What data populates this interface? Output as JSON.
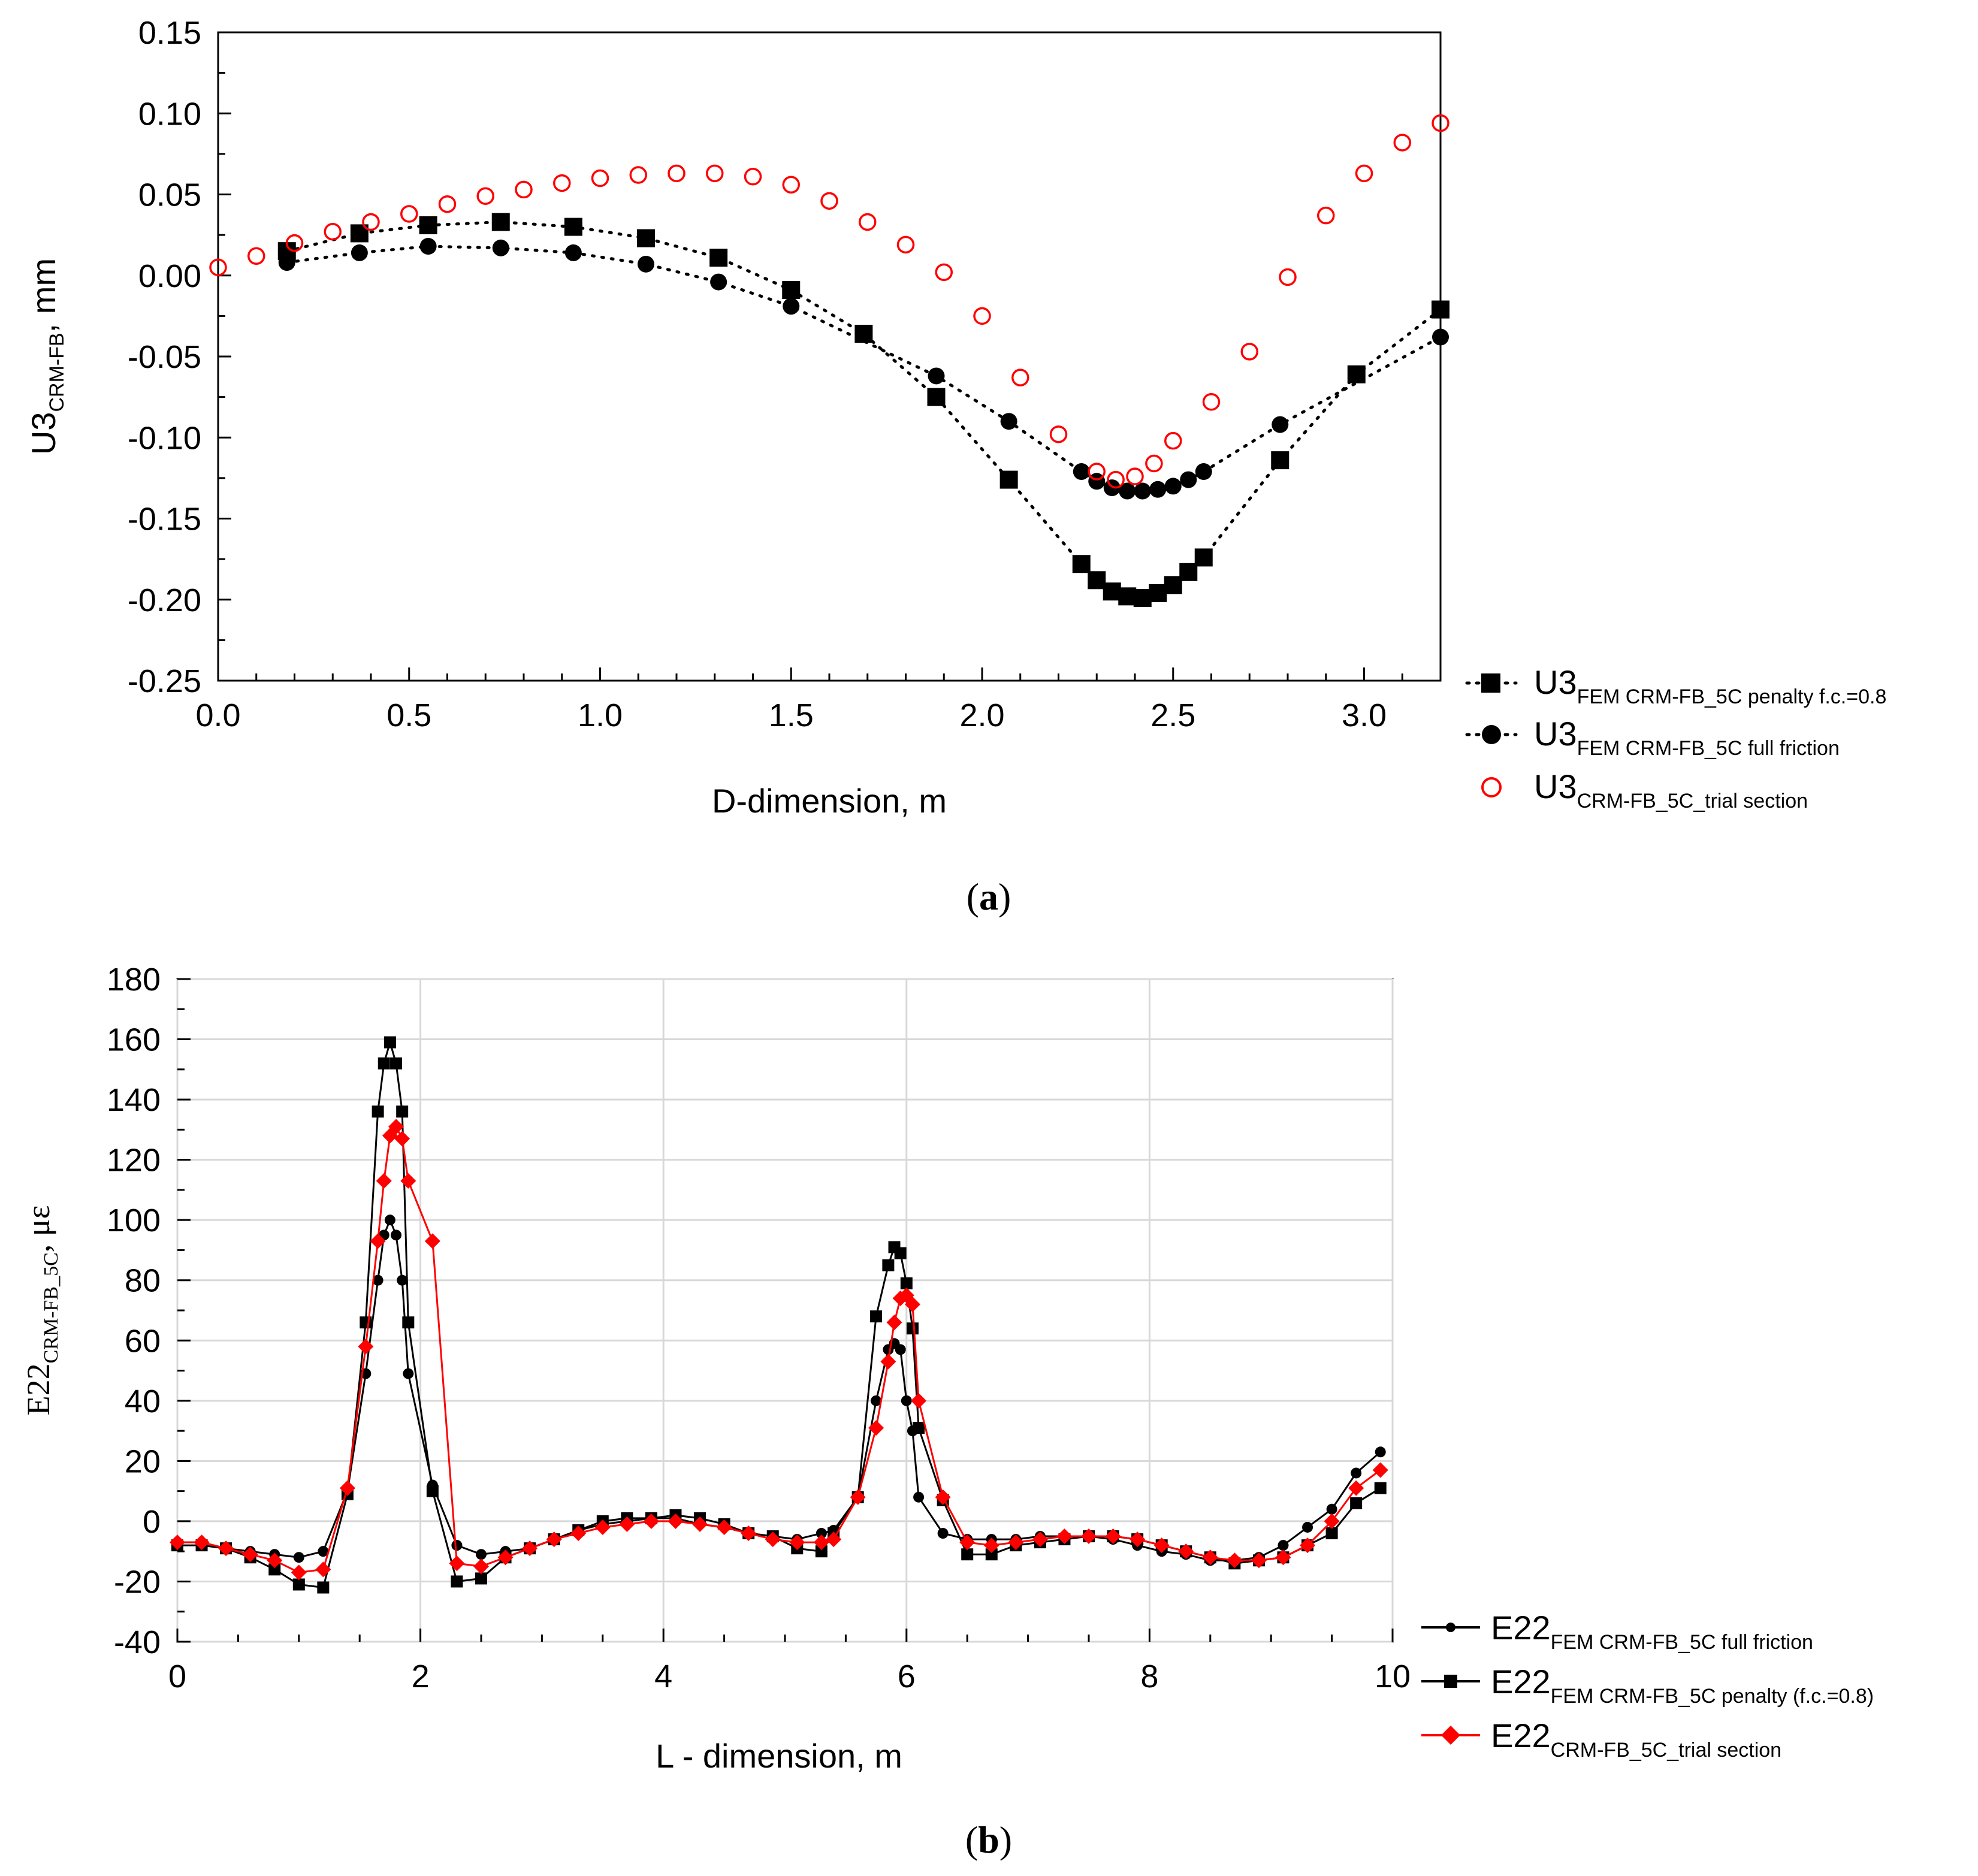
{
  "colors": {
    "black": "#000000",
    "red": "#ff0000",
    "grid": "#d8d8d8"
  },
  "chart_data": [
    {
      "id": "a",
      "type": "scatter",
      "panel_label": "(a)",
      "panel_letter": "a",
      "xlabel": "D-dimension, m",
      "ylabel_main": "U3",
      "ylabel_sub": "CRM-FB",
      "ylabel_suffix": ", mm",
      "xlim": [
        0.0,
        3.2
      ],
      "ylim": [
        -0.25,
        0.15
      ],
      "xticks": [
        0.0,
        0.5,
        1.0,
        1.5,
        2.0,
        2.5,
        3.0
      ],
      "xtick_labels": [
        "0.0",
        "0.5",
        "1.0",
        "1.5",
        "2.0",
        "2.5",
        "3.0"
      ],
      "yticks": [
        -0.25,
        -0.2,
        -0.15,
        -0.1,
        -0.05,
        0.0,
        0.05,
        0.1,
        0.15
      ],
      "ytick_labels": [
        "-0.25",
        "-0.20",
        "-0.15",
        "-0.10",
        "-0.05",
        "0.00",
        "0.05",
        "0.10",
        "0.15"
      ],
      "grid": false,
      "legend_position": "bottom-right outside",
      "series": [
        {
          "name": "U3 FEM CRM-FB_5C penalty f.c.=0.8",
          "label_main": "U3",
          "label_sub": "FEM CRM-FB_5C penalty f.c.=0.8",
          "marker": "square",
          "color": "#000000",
          "line": "dotted",
          "x": [
            0.18,
            0.37,
            0.55,
            0.74,
            0.93,
            1.12,
            1.31,
            1.5,
            1.69,
            1.88,
            2.07,
            2.26,
            2.3,
            2.34,
            2.38,
            2.42,
            2.46,
            2.5,
            2.54,
            2.58,
            2.78,
            2.98,
            3.2
          ],
          "y": [
            0.015,
            0.026,
            0.031,
            0.033,
            0.03,
            0.023,
            0.011,
            -0.009,
            -0.036,
            -0.075,
            -0.126,
            -0.178,
            -0.188,
            -0.195,
            -0.198,
            -0.199,
            -0.196,
            -0.191,
            -0.183,
            -0.174,
            -0.114,
            -0.061,
            -0.021
          ]
        },
        {
          "name": "U3 FEM CRM-FB_5C full friction",
          "label_main": "U3",
          "label_sub": "FEM CRM-FB_5C full friction",
          "marker": "circle",
          "color": "#000000",
          "line": "dotted",
          "x": [
            0.18,
            0.37,
            0.55,
            0.74,
            0.93,
            1.12,
            1.31,
            1.5,
            1.88,
            2.07,
            2.26,
            2.3,
            2.34,
            2.38,
            2.42,
            2.46,
            2.5,
            2.54,
            2.58,
            2.78,
            3.2
          ],
          "y": [
            0.008,
            0.014,
            0.018,
            0.017,
            0.014,
            0.007,
            -0.004,
            -0.019,
            -0.062,
            -0.09,
            -0.121,
            -0.127,
            -0.131,
            -0.133,
            -0.133,
            -0.132,
            -0.13,
            -0.126,
            -0.121,
            -0.092,
            -0.038
          ]
        },
        {
          "name": "U3 CRM-FB_5C_trial section",
          "label_main": "U3",
          "label_sub": "CRM-FB_5C_trial section",
          "marker": "open-circle",
          "color": "#ff0000",
          "line": "none",
          "x": [
            0.0,
            0.1,
            0.2,
            0.3,
            0.4,
            0.5,
            0.6,
            0.7,
            0.8,
            0.9,
            1.0,
            1.1,
            1.2,
            1.3,
            1.4,
            1.5,
            1.6,
            1.7,
            1.8,
            1.9,
            2.0,
            2.1,
            2.2,
            2.3,
            2.35,
            2.4,
            2.45,
            2.5,
            2.6,
            2.7,
            2.8,
            2.9,
            3.0,
            3.1,
            3.2
          ],
          "y": [
            0.005,
            0.012,
            0.02,
            0.027,
            0.033,
            0.038,
            0.044,
            0.049,
            0.053,
            0.057,
            0.06,
            0.062,
            0.063,
            0.063,
            0.061,
            0.056,
            0.046,
            0.033,
            0.019,
            0.002,
            -0.025,
            -0.063,
            -0.098,
            -0.121,
            -0.126,
            -0.124,
            -0.116,
            -0.102,
            -0.078,
            -0.047,
            -0.001,
            0.037,
            0.063,
            0.082,
            0.094
          ]
        }
      ]
    },
    {
      "id": "b",
      "type": "line",
      "panel_label": "(b)",
      "panel_letter": "b",
      "xlabel": "L - dimension, m",
      "ylabel_main": "E22",
      "ylabel_sub": "CRM-FB_5C",
      "ylabel_suffix": ", με",
      "xlim": [
        0,
        10
      ],
      "ylim": [
        -40,
        180
      ],
      "xticks": [
        0,
        2,
        4,
        6,
        8,
        10
      ],
      "xtick_labels": [
        "0",
        "2",
        "4",
        "6",
        "8",
        "10"
      ],
      "yticks": [
        -40,
        -20,
        0,
        20,
        40,
        60,
        80,
        100,
        120,
        140,
        160,
        180
      ],
      "ytick_labels": [
        "-40",
        "-20",
        "0",
        "20",
        "40",
        "60",
        "80",
        "100",
        "120",
        "140",
        "160",
        "180"
      ],
      "grid": true,
      "legend_position": "bottom-right outside",
      "series": [
        {
          "name": "E22 FEM CRM-FB_5C full friction",
          "label_main": "E22",
          "label_sub": "FEM CRM-FB_5C full friction",
          "marker": "circle",
          "color": "#000000",
          "line": "solid",
          "x": [
            0,
            0.2,
            0.4,
            0.6,
            0.8,
            1.0,
            1.2,
            1.4,
            1.55,
            1.65,
            1.7,
            1.75,
            1.8,
            1.85,
            1.9,
            2.1,
            2.3,
            2.5,
            2.7,
            2.9,
            3.1,
            3.3,
            3.5,
            3.7,
            3.9,
            4.1,
            4.3,
            4.5,
            4.7,
            4.9,
            5.1,
            5.3,
            5.4,
            5.6,
            5.75,
            5.85,
            5.9,
            5.95,
            6.0,
            6.05,
            6.1,
            6.3,
            6.5,
            6.7,
            6.9,
            7.1,
            7.3,
            7.5,
            7.7,
            7.9,
            8.1,
            8.3,
            8.5,
            8.7,
            8.9,
            9.1,
            9.3,
            9.5,
            9.7,
            9.9
          ],
          "y": [
            -7,
            -7,
            -9,
            -10,
            -11,
            -12,
            -10,
            10,
            49,
            80,
            95,
            100,
            95,
            80,
            49,
            12,
            -8,
            -11,
            -10,
            -9,
            -6,
            -3,
            -1,
            0,
            1,
            1,
            -1,
            -2,
            -4,
            -5,
            -6,
            -4,
            -3,
            8,
            40,
            57,
            59,
            57,
            40,
            30,
            8,
            -4,
            -6,
            -6,
            -6,
            -5,
            -5,
            -5,
            -6,
            -8,
            -10,
            -11,
            -13,
            -13,
            -12,
            -8,
            -2,
            4,
            16,
            23
          ]
        },
        {
          "name": "E22 FEM CRM-FB_5C penalty (f.c.=0.8)",
          "label_main": "E22",
          "label_sub": "FEM CRM-FB_5C penalty (f.c.=0.8)",
          "marker": "square",
          "color": "#000000",
          "line": "solid",
          "x": [
            0,
            0.2,
            0.4,
            0.6,
            0.8,
            1.0,
            1.2,
            1.4,
            1.55,
            1.65,
            1.7,
            1.75,
            1.8,
            1.85,
            1.9,
            2.1,
            2.3,
            2.5,
            2.7,
            2.9,
            3.1,
            3.3,
            3.5,
            3.7,
            3.9,
            4.1,
            4.3,
            4.5,
            4.7,
            4.9,
            5.1,
            5.3,
            5.4,
            5.6,
            5.75,
            5.85,
            5.9,
            5.95,
            6.0,
            6.05,
            6.1,
            6.3,
            6.5,
            6.7,
            6.9,
            7.1,
            7.3,
            7.5,
            7.7,
            7.9,
            8.1,
            8.3,
            8.5,
            8.7,
            8.9,
            9.1,
            9.3,
            9.5,
            9.7,
            9.9
          ],
          "y": [
            -8,
            -8,
            -9,
            -12,
            -16,
            -21,
            -22,
            9,
            66,
            136,
            152,
            159,
            152,
            136,
            66,
            10,
            -20,
            -19,
            -12,
            -9,
            -6,
            -3,
            0,
            1,
            1,
            2,
            1,
            -1,
            -4,
            -5,
            -9,
            -10,
            -4,
            8,
            68,
            85,
            91,
            89,
            79,
            64,
            31,
            7,
            -11,
            -11,
            -8,
            -7,
            -6,
            -5,
            -5,
            -6,
            -8,
            -10,
            -12,
            -14,
            -13,
            -12,
            -8,
            -4,
            6,
            11
          ]
        },
        {
          "name": "E22 CRM-FB_5C_trial section",
          "label_main": "E22",
          "label_sub": "CRM-FB_5C_trial section",
          "marker": "diamond",
          "color": "#ff0000",
          "line": "solid",
          "x": [
            0,
            0.2,
            0.4,
            0.6,
            0.8,
            1.0,
            1.2,
            1.4,
            1.55,
            1.65,
            1.7,
            1.75,
            1.8,
            1.85,
            1.9,
            2.1,
            2.3,
            2.5,
            2.7,
            2.9,
            3.1,
            3.3,
            3.5,
            3.7,
            3.9,
            4.1,
            4.3,
            4.5,
            4.7,
            4.9,
            5.1,
            5.3,
            5.4,
            5.6,
            5.75,
            5.85,
            5.9,
            5.95,
            6.0,
            6.05,
            6.1,
            6.3,
            6.5,
            6.7,
            6.9,
            7.1,
            7.3,
            7.5,
            7.7,
            7.9,
            8.1,
            8.3,
            8.5,
            8.7,
            8.9,
            9.1,
            9.3,
            9.5,
            9.7,
            9.9
          ],
          "y": [
            -7,
            -7,
            -9,
            -11,
            -13,
            -17,
            -16,
            11,
            58,
            93,
            113,
            128,
            131,
            127,
            113,
            93,
            -14,
            -15,
            -12,
            -9,
            -6,
            -4,
            -2,
            -1,
            0,
            0,
            -1,
            -2,
            -4,
            -6,
            -7,
            -7,
            -6,
            8,
            31,
            53,
            66,
            74,
            75,
            72,
            40,
            8,
            -7,
            -8,
            -7,
            -6,
            -5,
            -5,
            -5,
            -6,
            -8,
            -10,
            -12,
            -13,
            -13,
            -12,
            -8,
            0,
            11,
            17
          ]
        }
      ]
    }
  ]
}
